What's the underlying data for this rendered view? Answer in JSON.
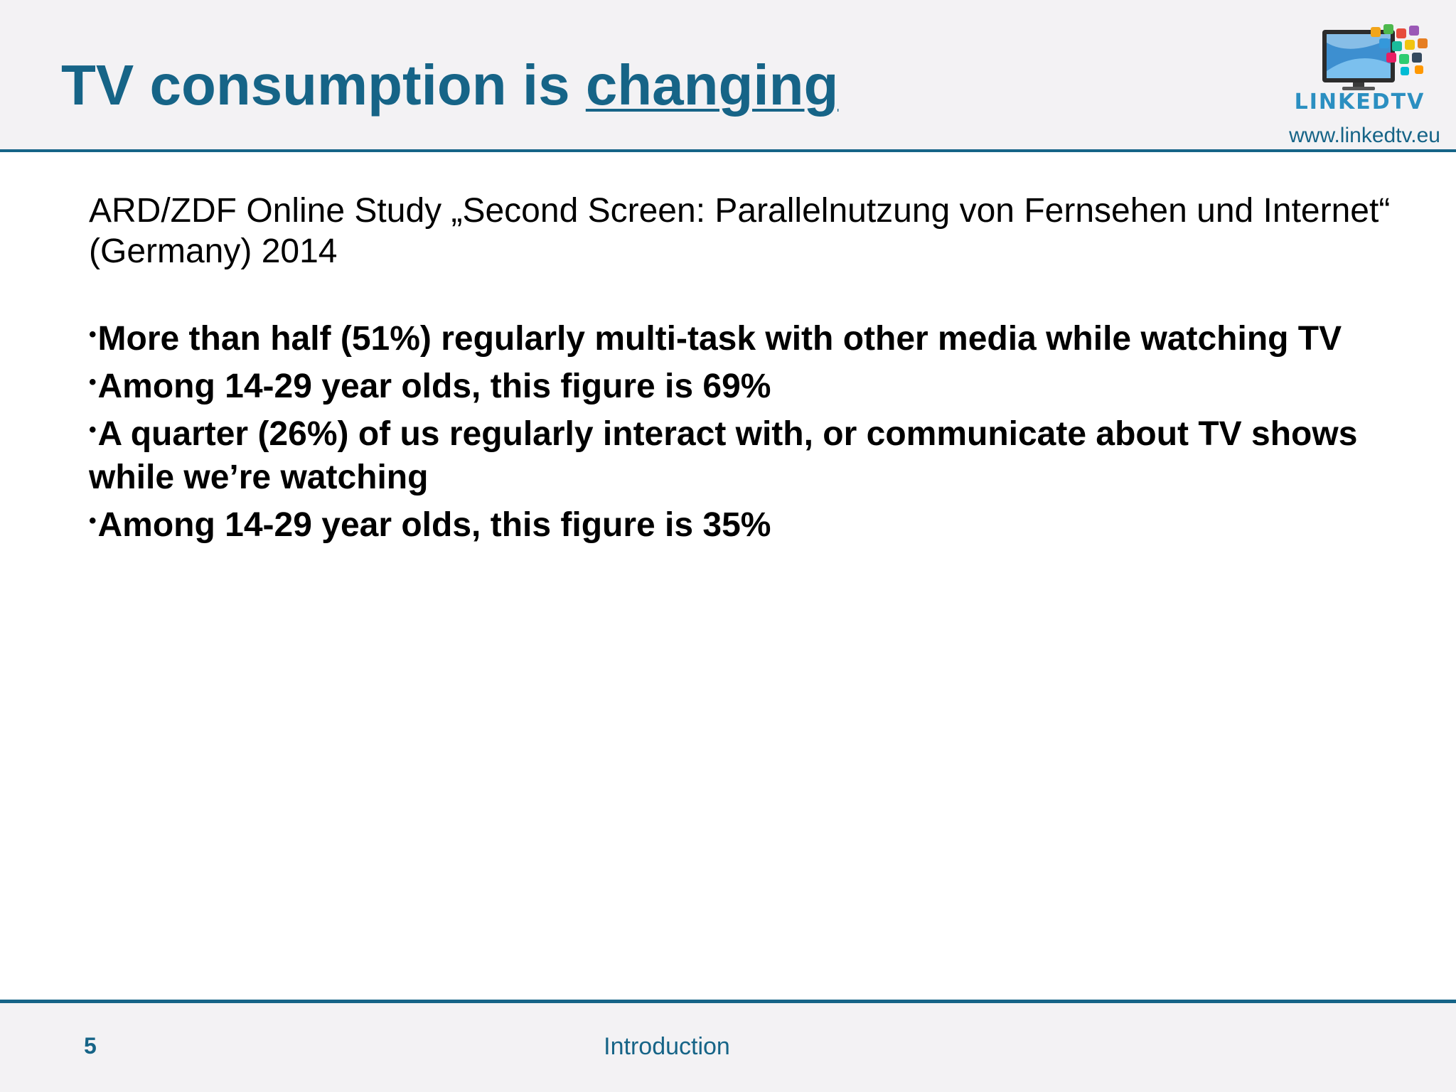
{
  "header": {
    "title_main": "TV consumption is ",
    "title_emph": "changing",
    "logo_text": "LINKEDTV",
    "url": "www.linkedtv.eu"
  },
  "content": {
    "intro": "ARD/ZDF Online Study „Second Screen: Parallelnutzung von Fernsehen und Internet“ (Germany) 2014",
    "bullets": [
      "More than half (51%) regularly multi-task with other media while watching TV",
      "Among 14-29 year olds, this figure is 69%",
      "A quarter (26%) of us regularly interact with, or communicate about TV shows while we’re watching",
      "Among 14-29 year olds, this figure is 35%"
    ]
  },
  "footer": {
    "page_number": "5",
    "section": "Introduction"
  },
  "colors": {
    "accent": "#166487",
    "header_bg": "#f3f2f4",
    "logo_blue": "#2b8fc1"
  }
}
